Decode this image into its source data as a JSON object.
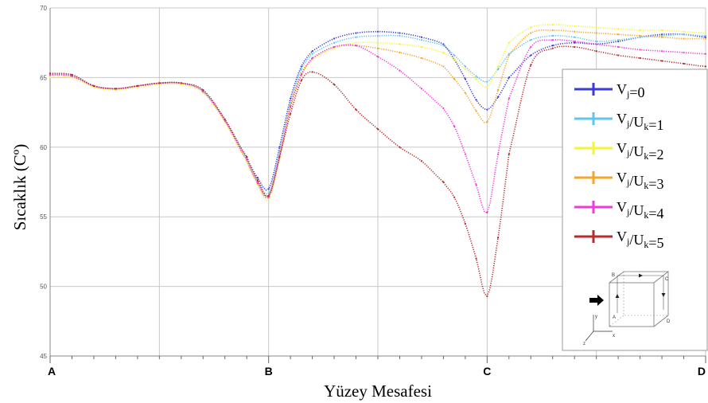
{
  "chart_data": {
    "type": "line",
    "xlabel": "Yüzey Mesafesi",
    "ylabel": "Sıcaklık (Cº)",
    "xlim": [
      0,
      3
    ],
    "ylim": [
      45,
      70
    ],
    "yticks": [
      "45",
      "50",
      "55",
      "60",
      "65",
      "70"
    ],
    "xtick_labels": [
      "A",
      "B",
      "C",
      "D"
    ],
    "grid": true,
    "legend_position": "right",
    "x": [
      0,
      0.1,
      0.2,
      0.3,
      0.4,
      0.5,
      0.6,
      0.7,
      0.8,
      0.9,
      0.95,
      1.0,
      1.05,
      1.1,
      1.15,
      1.2,
      1.3,
      1.4,
      1.5,
      1.6,
      1.7,
      1.8,
      1.85,
      1.9,
      1.95,
      2.0,
      2.05,
      2.1,
      2.2,
      2.3,
      2.4,
      2.5,
      2.6,
      2.7,
      2.8,
      2.9,
      3.0
    ],
    "series": [
      {
        "name_base": "V",
        "name_sub": "j",
        "name_rest": "=0",
        "color": "#3b3bd6",
        "values": [
          65.2,
          65.2,
          64.4,
          64.2,
          64.4,
          64.6,
          64.6,
          64.1,
          62.0,
          59.3,
          57.8,
          57.0,
          60.0,
          63.5,
          65.8,
          66.9,
          67.8,
          68.2,
          68.3,
          68.2,
          67.9,
          67.4,
          66.3,
          64.9,
          63.4,
          62.7,
          63.6,
          65.0,
          66.6,
          67.3,
          67.5,
          67.4,
          67.6,
          67.9,
          68.1,
          68.1,
          67.9
        ]
      },
      {
        "name_base": "V",
        "name_sub": "j",
        "name_rest": "/U",
        "name_sub2": "k",
        "name_rest2": "=1",
        "color": "#62c4ee",
        "values": [
          65.2,
          65.1,
          64.4,
          64.2,
          64.4,
          64.6,
          64.6,
          64.0,
          61.9,
          59.2,
          57.6,
          56.7,
          59.7,
          63.2,
          65.6,
          66.7,
          67.5,
          67.9,
          68.0,
          68.0,
          67.7,
          67.3,
          66.6,
          65.8,
          65.1,
          64.7,
          65.6,
          66.7,
          67.7,
          68.0,
          67.9,
          67.6,
          67.7,
          67.9,
          68.0,
          68.1,
          68.0
        ]
      },
      {
        "name_base": "V",
        "name_sub": "j",
        "name_rest": "/U",
        "name_sub2": "k",
        "name_rest2": "=2",
        "color": "#f4f43a",
        "values": [
          65.0,
          65.0,
          64.3,
          64.1,
          64.3,
          64.5,
          64.5,
          63.9,
          61.8,
          59.0,
          57.3,
          56.2,
          59.2,
          62.8,
          65.2,
          66.3,
          67.1,
          67.5,
          67.5,
          67.4,
          67.2,
          66.8,
          66.3,
          65.6,
          64.9,
          64.3,
          65.8,
          67.5,
          68.6,
          68.8,
          68.7,
          68.6,
          68.5,
          68.4,
          68.4,
          68.3,
          68.2
        ]
      },
      {
        "name_base": "V",
        "name_sub": "j",
        "name_rest": "/U",
        "name_sub2": "k",
        "name_rest2": "=3",
        "color": "#f4a52a",
        "values": [
          65.2,
          65.1,
          64.4,
          64.2,
          64.4,
          64.6,
          64.6,
          64.0,
          61.9,
          59.1,
          57.5,
          56.5,
          59.4,
          63.0,
          65.3,
          66.4,
          67.2,
          67.3,
          67.1,
          66.8,
          66.4,
          65.8,
          64.9,
          63.9,
          62.6,
          61.8,
          64.1,
          66.6,
          68.2,
          68.4,
          68.3,
          68.2,
          68.1,
          68.0,
          67.9,
          67.8,
          67.8
        ]
      },
      {
        "name_base": "V",
        "name_sub": "j",
        "name_rest": "/U",
        "name_sub2": "k",
        "name_rest2": "=4",
        "color": "#ee3ae0",
        "values": [
          65.2,
          65.1,
          64.4,
          64.2,
          64.4,
          64.6,
          64.6,
          64.0,
          61.9,
          59.1,
          57.4,
          56.4,
          59.3,
          62.9,
          65.2,
          66.4,
          67.2,
          67.3,
          66.5,
          65.5,
          64.2,
          62.8,
          61.5,
          59.5,
          57.3,
          55.3,
          59.5,
          63.5,
          67.2,
          67.7,
          67.6,
          67.4,
          67.2,
          67.0,
          66.9,
          66.8,
          66.7
        ]
      },
      {
        "name_base": "V",
        "name_sub": "j",
        "name_rest": "/U",
        "name_sub2": "k",
        "name_rest2": "=5",
        "color": "#b52d2d",
        "values": [
          65.3,
          65.2,
          64.4,
          64.2,
          64.4,
          64.6,
          64.6,
          64.1,
          62.0,
          59.3,
          57.6,
          56.5,
          59.3,
          62.4,
          64.8,
          65.4,
          64.5,
          62.7,
          61.3,
          60.0,
          59.0,
          57.5,
          56.4,
          54.5,
          52.0,
          49.3,
          53.5,
          59.5,
          65.9,
          67.1,
          67.2,
          66.9,
          66.6,
          66.4,
          66.2,
          66.0,
          65.8
        ]
      }
    ]
  },
  "inset": {
    "labels": [
      "B",
      "C",
      "A",
      "D",
      "y",
      "x",
      "z"
    ]
  }
}
